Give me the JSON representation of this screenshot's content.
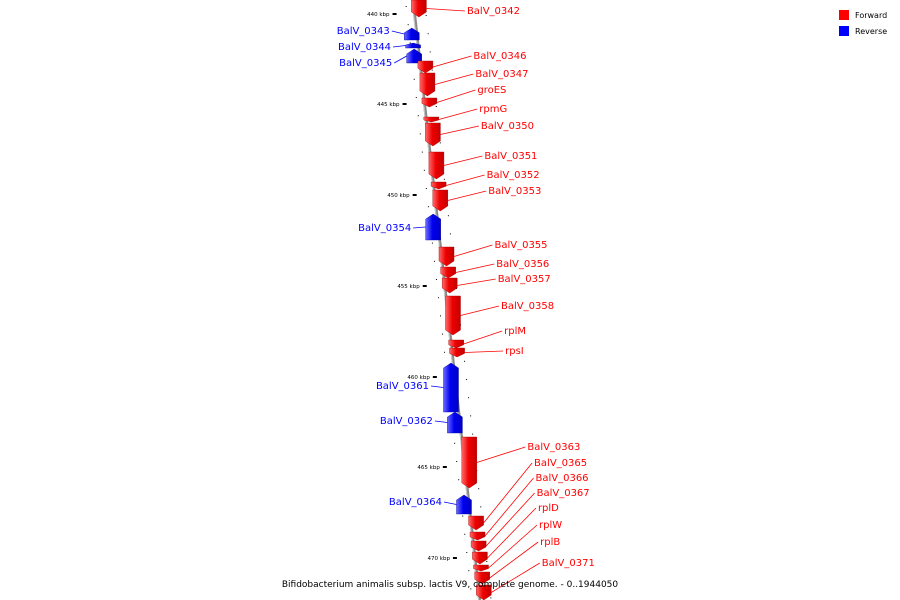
{
  "colors": {
    "forward": "#ff0000",
    "reverse": "#0000ff",
    "backbone": "#888888"
  },
  "legend": [
    {
      "label": "Forward",
      "strand": "forward"
    },
    {
      "label": "Reverse",
      "strand": "reverse"
    }
  ],
  "caption": "Bifidobacterium animalis subsp. lactis V9, complete genome. - 0..1944050",
  "scale_ticks": [
    "440 kbp",
    "445 kbp",
    "450 kbp",
    "455 kbp",
    "460 kbp",
    "465 kbp",
    "470 kbp"
  ],
  "genes": [
    {
      "name": "BalV_0342",
      "strand": "forward"
    },
    {
      "name": "BalV_0343",
      "strand": "reverse"
    },
    {
      "name": "BalV_0344",
      "strand": "reverse"
    },
    {
      "name": "BalV_0345",
      "strand": "reverse"
    },
    {
      "name": "BalV_0346",
      "strand": "forward"
    },
    {
      "name": "BalV_0347",
      "strand": "forward"
    },
    {
      "name": "groES",
      "strand": "forward"
    },
    {
      "name": "rpmG",
      "strand": "forward"
    },
    {
      "name": "BalV_0350",
      "strand": "forward"
    },
    {
      "name": "BalV_0351",
      "strand": "forward"
    },
    {
      "name": "BalV_0352",
      "strand": "forward"
    },
    {
      "name": "BalV_0353",
      "strand": "forward"
    },
    {
      "name": "BalV_0354",
      "strand": "reverse"
    },
    {
      "name": "BalV_0355",
      "strand": "forward"
    },
    {
      "name": "BalV_0356",
      "strand": "forward"
    },
    {
      "name": "BalV_0357",
      "strand": "forward"
    },
    {
      "name": "BalV_0358",
      "strand": "forward"
    },
    {
      "name": "rplM",
      "strand": "forward"
    },
    {
      "name": "rpsI",
      "strand": "forward"
    },
    {
      "name": "BalV_0361",
      "strand": "reverse"
    },
    {
      "name": "BalV_0362",
      "strand": "reverse"
    },
    {
      "name": "BalV_0363",
      "strand": "forward"
    },
    {
      "name": "BalV_0364",
      "strand": "reverse"
    },
    {
      "name": "BalV_0365",
      "strand": "forward"
    },
    {
      "name": "BalV_0366",
      "strand": "forward"
    },
    {
      "name": "BalV_0367",
      "strand": "forward"
    },
    {
      "name": "rplD",
      "strand": "forward"
    },
    {
      "name": "rplW",
      "strand": "forward"
    },
    {
      "name": "rplB",
      "strand": "forward"
    },
    {
      "name": "BalV_0371",
      "strand": "forward"
    }
  ]
}
